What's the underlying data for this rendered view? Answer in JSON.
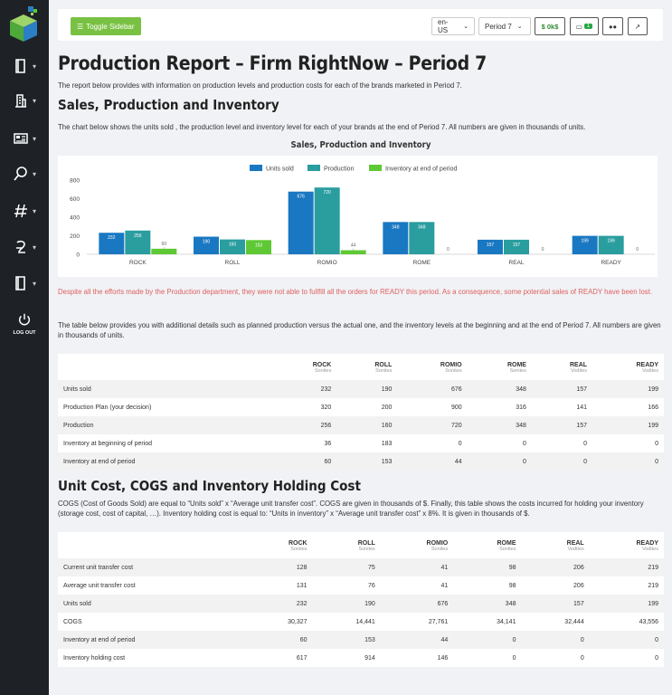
{
  "sidebar": {
    "logout_label": "LOG OUT",
    "items": [
      "book-icon",
      "building-icon",
      "newspaper-icon",
      "search-icon",
      "hashtag-icon",
      "money-icon",
      "book-icon-2"
    ]
  },
  "topbar": {
    "toggle_label": "Toggle Sidebar",
    "language": "en-US",
    "period": "Period 7",
    "cash": "$ 0k$",
    "messages_count": "1"
  },
  "page": {
    "title": "Production Report – Firm RightNow – Period 7",
    "intro": "The report below provides with information on production levels and production costs for each of the brands marketed in Period 7.",
    "section1_title": "Sales, Production and Inventory",
    "section1_text": "The chart below shows the units sold , the production level and inventory level for each of your brands at the end of Period 7. All numbers are given in thousands of units.",
    "warning": "Despite all the efforts made by the Production department, they were not able to fullfill all the orders for READY this period. As a consequence, some potential sales of READY have been lost.",
    "table1_intro": "The table below provides you with additional details such as planned production versus the actual one, and the inventory levels at the beginning and at the end of Period 7. All numbers are given in thousands of units.",
    "section2_title": "Unit Cost, COGS and Inventory Holding Cost",
    "section2_text": "COGS (Cost of Goods Sold) are equal to “Units sold” x “Average unit transfer cost”. COGS are given in thousands of $. Finally, this table shows the costs incurred for holding your inventory (storage cost, cost of capital, …). Inventory holding cost is equal to: “Units in inventory” x “Average unit transfer cost” x 8%. It is given in thousands of $."
  },
  "chart_data": {
    "type": "bar",
    "title": "Sales, Production and Inventory",
    "categories": [
      "ROCK",
      "ROLL",
      "ROMIO",
      "ROME",
      "REAL",
      "READY"
    ],
    "series": [
      {
        "name": "Units sold",
        "color": "#1a78c2",
        "values": [
          232,
          190,
          676,
          348,
          157,
          199
        ]
      },
      {
        "name": "Production",
        "color": "#2a9d9f",
        "values": [
          256,
          160,
          720,
          348,
          157,
          199
        ]
      },
      {
        "name": "Inventory at end of period",
        "color": "#5ec934",
        "values": [
          60,
          153,
          44,
          0,
          0,
          0
        ]
      }
    ],
    "y_ticks": [
      0,
      200,
      400,
      600,
      800
    ],
    "ylim": [
      0,
      800
    ],
    "legend": "top",
    "grid": false
  },
  "table1": {
    "headers": [
      {
        "name": "ROCK",
        "sub": "Sonites"
      },
      {
        "name": "ROLL",
        "sub": "Sonites"
      },
      {
        "name": "ROMIO",
        "sub": "Sonites"
      },
      {
        "name": "ROME",
        "sub": "Sonites"
      },
      {
        "name": "REAL",
        "sub": "Vodites"
      },
      {
        "name": "READY",
        "sub": "Vodites"
      }
    ],
    "rows": [
      {
        "label": "Units sold",
        "values": [
          "232",
          "190",
          "676",
          "348",
          "157",
          "199"
        ]
      },
      {
        "label": "Production Plan (your decision)",
        "values": [
          "320",
          "200",
          "900",
          "316",
          "141",
          "166"
        ]
      },
      {
        "label": "Production",
        "values": [
          "256",
          "160",
          "720",
          "348",
          "157",
          "199"
        ]
      },
      {
        "label": "Inventory at beginning of period",
        "values": [
          "36",
          "183",
          "0",
          "0",
          "0",
          "0"
        ]
      },
      {
        "label": "Inventory at end of period",
        "values": [
          "60",
          "153",
          "44",
          "0",
          "0",
          "0"
        ]
      }
    ]
  },
  "table2": {
    "headers": [
      {
        "name": "ROCK",
        "sub": "Sonites"
      },
      {
        "name": "ROLL",
        "sub": "Sonites"
      },
      {
        "name": "ROMIO",
        "sub": "Sonites"
      },
      {
        "name": "ROME",
        "sub": "Sonites"
      },
      {
        "name": "REAL",
        "sub": "Vodites"
      },
      {
        "name": "READY",
        "sub": "Vodites"
      }
    ],
    "rows": [
      {
        "label": "Current unit transfer cost",
        "values": [
          "128",
          "75",
          "41",
          "98",
          "206",
          "219"
        ]
      },
      {
        "label": "Average unit transfer cost",
        "values": [
          "131",
          "76",
          "41",
          "98",
          "206",
          "219"
        ]
      },
      {
        "label": "Units sold",
        "values": [
          "232",
          "190",
          "676",
          "348",
          "157",
          "199"
        ]
      },
      {
        "label": "COGS",
        "values": [
          "30,327",
          "14,441",
          "27,761",
          "34,141",
          "32,444",
          "43,556"
        ]
      },
      {
        "label": "Inventory at end of period",
        "values": [
          "60",
          "153",
          "44",
          "0",
          "0",
          "0"
        ]
      },
      {
        "label": "Inventory holding cost",
        "values": [
          "617",
          "914",
          "146",
          "0",
          "0",
          "0"
        ]
      }
    ]
  }
}
